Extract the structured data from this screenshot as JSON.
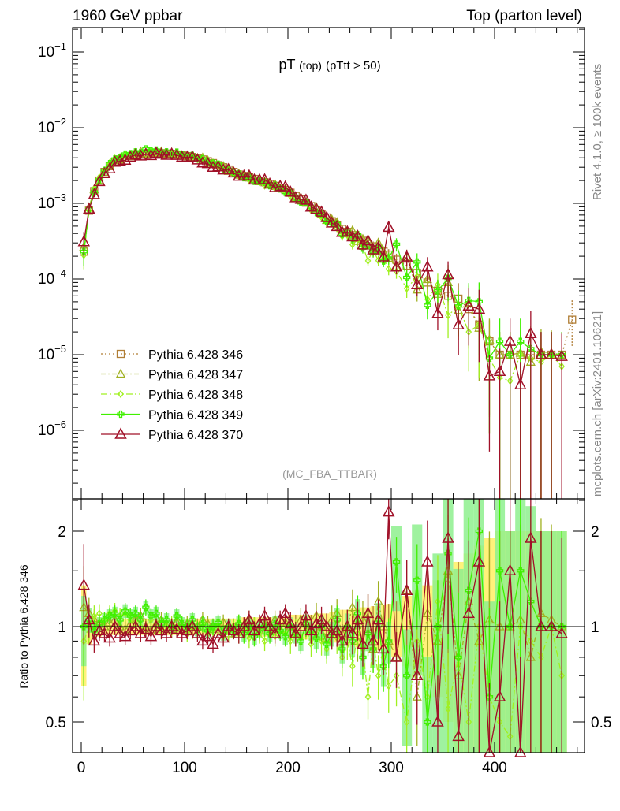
{
  "header": {
    "left": "1960 GeV ppbar",
    "right": "Top (parton level)"
  },
  "side_labels": {
    "rivet": "Rivet 4.1.0, ≥ 100k events",
    "mcplots": "mcplots.cern.ch [arXiv:2401.10621]"
  },
  "chart_data": {
    "type": "line",
    "title": "pT (top) (pTtt > 50)",
    "title_main": "pT",
    "title_sub": "(top)",
    "title_cut": "(pTtt > 50)",
    "analysis": "(MC_FBA_TTBAR)",
    "xlabel": "",
    "ylabel": "",
    "ratio_ylabel": "Ratio to Pythia 6.428 346",
    "xlim": [
      -8.4,
      487
    ],
    "ylim": [
      1.2e-07,
      0.21
    ],
    "yscale": "log",
    "ratio_ylim": [
      0.4,
      2.5
    ],
    "ratio_yscale": "log",
    "x_ticks": [
      "0",
      "100",
      "200",
      "300",
      "400"
    ],
    "y_ticks": [
      {
        "base": "10",
        "exp": "−1"
      },
      {
        "base": "10",
        "exp": "−2"
      },
      {
        "base": "10",
        "exp": "−3"
      },
      {
        "base": "10",
        "exp": "−4"
      },
      {
        "base": "10",
        "exp": "−5"
      },
      {
        "base": "10",
        "exp": "−6"
      }
    ],
    "ratio_ticks": [
      "2",
      "1",
      "0.5"
    ],
    "legend_position": "lower-left",
    "x": [
      2.5,
      7.5,
      12.5,
      17.5,
      22.5,
      27.5,
      32.5,
      37.5,
      42.5,
      47.5,
      52.5,
      57.5,
      62.5,
      67.5,
      72.5,
      77.5,
      82.5,
      87.5,
      92.5,
      97.5,
      102.5,
      107.5,
      112.5,
      117.5,
      122.5,
      127.5,
      132.5,
      137.5,
      142.5,
      147.5,
      152.5,
      157.5,
      162.5,
      167.5,
      172.5,
      177.5,
      182.5,
      187.5,
      192.5,
      197.5,
      202.5,
      207.5,
      212.5,
      217.5,
      222.5,
      227.5,
      232.5,
      237.5,
      242.5,
      247.5,
      252.5,
      257.5,
      262.5,
      267.5,
      272.5,
      277.5,
      282.5,
      287.5,
      292.5,
      297.5,
      305,
      315,
      325,
      335,
      345,
      355,
      365,
      375,
      385,
      395,
      405,
      415,
      425,
      435,
      445,
      455,
      465
    ],
    "reference_values": [
      0.00023,
      0.0008,
      0.00145,
      0.002,
      0.0026,
      0.0031,
      0.0035,
      0.0038,
      0.004,
      0.0042,
      0.00435,
      0.00445,
      0.00455,
      0.0046,
      0.0046,
      0.0046,
      0.00455,
      0.0045,
      0.0044,
      0.0043,
      0.0042,
      0.0041,
      0.00395,
      0.0038,
      0.0036,
      0.0034,
      0.0032,
      0.003,
      0.0028,
      0.0026,
      0.0024,
      0.0023,
      0.0022,
      0.0021,
      0.002,
      0.0019,
      0.0018,
      0.0017,
      0.0016,
      0.0015,
      0.00138,
      0.00125,
      0.00113,
      0.00102,
      0.00092,
      0.00082,
      0.00073,
      0.00065,
      0.00058,
      0.00051,
      0.00046,
      0.00042,
      0.00038,
      0.00035,
      0.00032,
      0.00029,
      0.00027,
      0.00025,
      0.00023,
      0.00021,
      0.00018,
      0.00015,
      0.00012,
      9e-05,
      7e-05,
      6e-05,
      5.5e-05,
      4e-05,
      2.5e-05,
      1.5e-05,
      1e-05,
      1e-05,
      1e-05,
      1e-05,
      1e-05,
      1e-05,
      1e-05
    ],
    "extra_point_346": {
      "x": 475,
      "value": 2.9e-05
    },
    "series": [
      {
        "name": "Pythia 6.428 346",
        "color": "#b07d35",
        "marker": "square",
        "dash": "2,3",
        "ratio": [
          1,
          1,
          1,
          1,
          1,
          1,
          1,
          1,
          1,
          1,
          1,
          1,
          1,
          1,
          1,
          1,
          1,
          1,
          1,
          1,
          1,
          1,
          1,
          1,
          1,
          1,
          1,
          1,
          1,
          1,
          1,
          1,
          1,
          1,
          1,
          1,
          1,
          1,
          1,
          1,
          1,
          1,
          1,
          1,
          1,
          1,
          1,
          1,
          1,
          1,
          1,
          1,
          1,
          1,
          1,
          1,
          1,
          1,
          1,
          1,
          1,
          1,
          1,
          1,
          1,
          1,
          1,
          1,
          1,
          1,
          1,
          1,
          1,
          1,
          1,
          1,
          1
        ],
        "rel_err": [
          0.35,
          0.12,
          0.08,
          0.07,
          0.06,
          0.06,
          0.06,
          0.06,
          0.06,
          0.06,
          0.06,
          0.06,
          0.06,
          0.06,
          0.06,
          0.06,
          0.06,
          0.06,
          0.06,
          0.06,
          0.06,
          0.06,
          0.06,
          0.06,
          0.06,
          0.06,
          0.06,
          0.06,
          0.06,
          0.06,
          0.07,
          0.07,
          0.07,
          0.07,
          0.07,
          0.07,
          0.07,
          0.07,
          0.07,
          0.07,
          0.09,
          0.09,
          0.09,
          0.09,
          0.09,
          0.1,
          0.1,
          0.1,
          0.11,
          0.11,
          0.13,
          0.13,
          0.14,
          0.14,
          0.15,
          0.15,
          0.16,
          0.16,
          0.17,
          0.18,
          0.2,
          0.25,
          0.3,
          0.35,
          0.4,
          0.5,
          0.6,
          0.7,
          0.8,
          0.9,
          1,
          1,
          1,
          1,
          1,
          1,
          1
        ]
      },
      {
        "name": "Pythia 6.428 347",
        "color": "#a0b020",
        "marker": "triangle",
        "dash": "6,3,2,3",
        "ratio": [
          1.15,
          1.1,
          1.05,
          1.02,
          1.0,
          1.03,
          1.05,
          1.0,
          0.98,
          1.02,
          1.05,
          1.08,
          1.0,
          0.97,
          1.02,
          1.05,
          1.0,
          0.98,
          1.03,
          1.0,
          1.02,
          0.97,
          1.0,
          1.05,
          1.02,
          0.98,
          1.0,
          1.03,
          0.95,
          1.0,
          1.02,
          0.98,
          1.05,
          1.0,
          0.97,
          1.02,
          1.0,
          1.05,
          0.98,
          1.03,
          1.0,
          0.95,
          1.05,
          1.02,
          0.98,
          1.08,
          1.0,
          0.92,
          1.05,
          1.1,
          0.95,
          1.0,
          1.15,
          0.9,
          1.05,
          1.1,
          0.85,
          1.2,
          1.0,
          0.9,
          0.8,
          1.3,
          0.6,
          1.1,
          0.9,
          1.5,
          0.7,
          1.2,
          0.9,
          1.05,
          1.0,
          1.0,
          1.05,
          0.8,
          1.1,
          1.05,
          1.0
        ]
      },
      {
        "name": "Pythia 6.428 348",
        "color": "#a0f020",
        "marker": "diamond",
        "dash": "8,3,2,3",
        "ratio": [
          0.9,
          1.0,
          1.08,
          1.1,
          1.05,
          1.1,
          1.12,
          1.08,
          1.1,
          1.05,
          1.02,
          1.0,
          0.98,
          1.05,
          1.0,
          0.97,
          1.0,
          1.02,
          0.98,
          1.0,
          0.95,
          1.0,
          0.97,
          1.02,
          0.95,
          0.98,
          1.0,
          0.93,
          0.97,
          1.0,
          0.95,
          0.98,
          0.92,
          1.0,
          0.95,
          0.9,
          0.97,
          0.93,
          1.0,
          0.95,
          0.9,
          0.97,
          0.92,
          1.0,
          0.88,
          0.95,
          0.9,
          0.85,
          0.97,
          0.92,
          0.8,
          0.9,
          0.75,
          0.95,
          0.85,
          0.6,
          0.9,
          0.7,
          0.8,
          0.65,
          0.7,
          0.5,
          0.9,
          0.6,
          1.2,
          0.55,
          0.8,
          0.5,
          1.0,
          0.6,
          0.5,
          0.45,
          1.0,
          0.9,
          0.8,
          1.0,
          0.7
        ]
      },
      {
        "name": "Pythia 6.428 349",
        "color": "#40f000",
        "marker": "cross",
        "dash": "",
        "ratio": [
          1.0,
          1.05,
          0.97,
          1.02,
          1.05,
          1.08,
          1.1,
          1.05,
          1.12,
          1.08,
          1.1,
          1.05,
          1.15,
          1.08,
          1.1,
          1.02,
          1.05,
          1.0,
          1.08,
          1.02,
          1.0,
          1.05,
          0.98,
          1.02,
          0.97,
          1.0,
          1.03,
          0.95,
          1.0,
          0.97,
          1.02,
          0.95,
          1.0,
          0.93,
          0.98,
          1.0,
          0.95,
          1.02,
          0.97,
          0.93,
          1.0,
          0.95,
          0.9,
          1.02,
          0.97,
          0.92,
          1.0,
          0.88,
          0.95,
          1.05,
          0.85,
          1.0,
          0.9,
          1.1,
          0.8,
          0.95,
          0.85,
          1.05,
          0.75,
          0.9,
          1.6,
          0.7,
          1.4,
          0.5,
          1.0,
          1.7,
          0.8,
          1.3,
          2.0,
          0.6,
          1.5,
          1.0,
          1.5,
          1.2,
          1.0,
          1.0,
          1.0
        ],
        "rel_err": [
          0.25,
          0.09,
          0.06,
          0.05,
          0.05,
          0.05,
          0.05,
          0.05,
          0.05,
          0.05,
          0.05,
          0.05,
          0.05,
          0.05,
          0.05,
          0.05,
          0.05,
          0.05,
          0.05,
          0.05,
          0.05,
          0.05,
          0.05,
          0.05,
          0.05,
          0.05,
          0.05,
          0.05,
          0.05,
          0.05,
          0.06,
          0.06,
          0.06,
          0.06,
          0.06,
          0.06,
          0.06,
          0.06,
          0.06,
          0.06,
          0.07,
          0.07,
          0.07,
          0.07,
          0.07,
          0.08,
          0.08,
          0.08,
          0.09,
          0.09,
          0.1,
          0.1,
          0.11,
          0.11,
          0.12,
          0.12,
          0.13,
          0.13,
          0.14,
          0.15,
          0.3,
          0.4,
          0.5,
          0.6,
          0.7,
          0.8,
          0.9,
          1,
          1,
          1,
          1,
          1,
          1,
          1,
          1,
          1,
          1
        ]
      },
      {
        "name": "Pythia 6.428 370",
        "color": "#a01028",
        "marker": "triangle-large",
        "dash": "",
        "ratio": [
          1.35,
          1.05,
          0.9,
          0.97,
          0.95,
          0.92,
          1.0,
          0.95,
          0.93,
          0.97,
          1.0,
          0.95,
          0.98,
          0.93,
          1.0,
          0.97,
          0.95,
          1.0,
          0.98,
          0.95,
          0.97,
          1.0,
          0.95,
          0.9,
          0.93,
          0.88,
          0.95,
          0.92,
          1.0,
          0.97,
          0.95,
          1.0,
          1.05,
          0.97,
          1.02,
          1.08,
          1.0,
          0.95,
          1.05,
          1.1,
          1.02,
          0.95,
          1.0,
          1.08,
          0.97,
          1.02,
          1.05,
          1.0,
          0.95,
          0.97,
          0.9,
          1.0,
          0.95,
          1.05,
          0.88,
          1.1,
          0.9,
          1.05,
          0.85,
          2.3,
          0.8,
          1.3,
          0.7,
          1.6,
          0.5,
          1.9,
          0.45,
          1.1,
          1.6,
          0.35,
          0.6,
          1.5,
          0.4,
          1.9,
          1.0,
          1.0,
          0.95
        ]
      }
    ]
  }
}
